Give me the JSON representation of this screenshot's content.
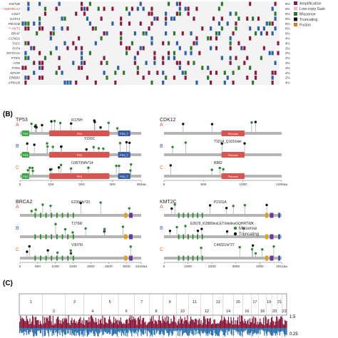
{
  "panel_a": {
    "genes": [
      "KMT2B",
      "* SMARCA2",
      "CD27",
      "GATA4",
      "PIK3CB",
      "** AKT2",
      "BRAF",
      "CCND1",
      "TAF1",
      "FAT4",
      "NOTCH1",
      "PTEN",
      "ATM",
      "PTK6",
      "MTOR",
      "ERBB3",
      "ARID1B"
    ],
    "gene_colors": [
      "#333333",
      "#c0392b",
      "#333333",
      "#333333",
      "#333333",
      "#c0392b",
      "#333333",
      "#333333",
      "#333333",
      "#333333",
      "#333333",
      "#333333",
      "#333333",
      "#333333",
      "#333333",
      "#333333",
      "#333333"
    ],
    "percents": [
      "8%",
      "6%",
      "6%",
      "6%",
      "6%",
      "6%",
      "6%",
      "4%",
      "4%",
      "2%",
      "2%",
      "2%",
      "2%",
      "2%",
      "4%",
      "2%",
      "4%"
    ],
    "legend": [
      {
        "label": "Amplification",
        "color": "#8b1a3a"
      },
      {
        "label": "Low-copy Gain",
        "color": "#f2b8c6"
      },
      {
        "label": "Missense",
        "color": "#2a7a2a"
      },
      {
        "label": "Truncating",
        "color": "#111111"
      },
      {
        "label": "Fusion",
        "color": "#e07b1a"
      }
    ]
  },
  "panel_b": {
    "label": "(B)",
    "legend": [
      {
        "label": "Missense",
        "color": "#2a8a2a"
      },
      {
        "label": "Truncating",
        "color": "#111111"
      }
    ],
    "genes": [
      {
        "name": "TP53",
        "length": 393,
        "end_label": "393aa",
        "ticks": [
          "0",
          "100",
          "200",
          "300",
          "393aa"
        ],
        "domains": [
          {
            "label": "P53",
            "start": 95,
            "end": 290,
            "color": "#d9534f"
          },
          {
            "label": "P53_T",
            "start": 318,
            "end": 358,
            "color": "#3a5aa8"
          },
          {
            "label": "P53",
            "start": 6,
            "end": 30,
            "color": "#3aa845"
          }
        ],
        "tracks": [
          {
            "letter": "A",
            "annotation": "R175H",
            "annotation2": "Y220C"
          },
          {
            "letter": "B",
            "annotation": "",
            "annotation2": ""
          },
          {
            "letter": "C",
            "annotation": "I195T/N/fs*14",
            "annotation2": ""
          }
        ]
      },
      {
        "name": "CDK12",
        "length": 1490,
        "end_label": "1490aa",
        "ticks": [
          "0",
          "500",
          "1000",
          "1490aa"
        ],
        "domains": [
          {
            "label": "Pkinase",
            "start": 727,
            "end": 1020,
            "color": "#d9534f"
          }
        ],
        "tracks": [
          {
            "letter": "A",
            "annotation": "",
            "annotation2": ""
          },
          {
            "letter": "B",
            "annotation": "T1014_Q1016del",
            "annotation2": ""
          },
          {
            "letter": "C",
            "annotation": "R882",
            "annotation2": ""
          }
        ]
      },
      {
        "name": "BRCA2",
        "length": 3418,
        "end_label": "3418aa",
        "ticks": [
          "0",
          "500",
          "1000",
          "1500",
          "2000",
          "2500",
          "3000",
          "3418aa"
        ],
        "tracks": [
          {
            "letter": "A",
            "annotation": "E2391fs*33",
            "annotation2": ""
          },
          {
            "letter": "B",
            "annotation": "T2766I",
            "annotation2": ""
          },
          {
            "letter": "C",
            "annotation": "V3079I",
            "annotation2": ""
          }
        ]
      },
      {
        "name": "KMT2C",
        "length": 4911,
        "end_label": "4911aa",
        "ticks": [
          "0",
          "1000",
          "2000",
          "3000",
          "4000",
          "4911aa"
        ],
        "tracks": [
          {
            "letter": "A",
            "annotation": "P2101A",
            "annotation2": ""
          },
          {
            "letter": "B",
            "annotation": "E2679_K2880insLETI/delinsGQHRTWK",
            "annotation2": ""
          },
          {
            "letter": "C",
            "annotation": "C4432Lfs*27",
            "annotation2": ""
          }
        ]
      }
    ]
  },
  "panel_c": {
    "label": "(C)",
    "chromosomes": [
      "1",
      "2",
      "3",
      "4",
      "5",
      "6",
      "7",
      "8",
      "9",
      "10",
      "11",
      "12",
      "13",
      "14",
      "15",
      "16",
      "17",
      "18",
      "19",
      "20",
      "21",
      "22"
    ],
    "y_tick_top": "1.5",
    "y_tick_bottom": "0.25",
    "amp_color": "#8b1a3a",
    "del_color": "#2c6fae"
  }
}
